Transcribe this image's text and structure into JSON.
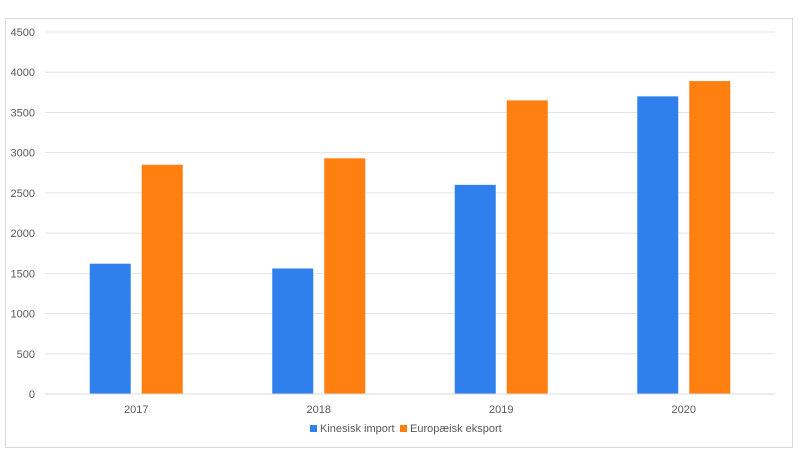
{
  "chart_data": {
    "type": "bar",
    "title": "",
    "xlabel": "",
    "ylabel": "",
    "categories": [
      "2017",
      "2018",
      "2019",
      "2020"
    ],
    "series": [
      {
        "name": "Kinesisk import",
        "values": [
          1620,
          1560,
          2600,
          3700
        ],
        "color": "#2f80ed"
      },
      {
        "name": "Europæisk eksport",
        "values": [
          2850,
          2930,
          3650,
          3890
        ],
        "color": "#ff7f11"
      }
    ],
    "ylim": [
      0,
      4500
    ],
    "yticks": [
      0,
      500,
      1000,
      1500,
      2000,
      2500,
      3000,
      3500,
      4000,
      4500
    ],
    "grid": true,
    "legend_position": "bottom"
  }
}
